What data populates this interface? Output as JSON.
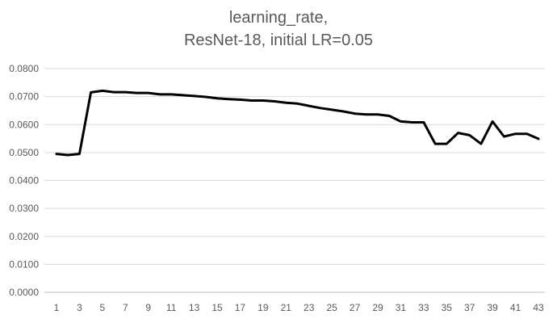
{
  "chart_data": {
    "type": "line",
    "title_line1": "learning_rate,",
    "title_line2": "ResNet-18, initial LR=0.05",
    "xlabel": "",
    "ylabel": "",
    "ylim": [
      0,
      0.08
    ],
    "y_ticks": [
      "0.0000",
      "0.0100",
      "0.0200",
      "0.0300",
      "0.0400",
      "0.0500",
      "0.0600",
      "0.0700",
      "0.0800"
    ],
    "y_tick_values": [
      0,
      0.01,
      0.02,
      0.03,
      0.04,
      0.05,
      0.06,
      0.07,
      0.08
    ],
    "x_tick_labels": [
      "1",
      "3",
      "5",
      "7",
      "9",
      "11",
      "13",
      "15",
      "17",
      "19",
      "21",
      "23",
      "25",
      "27",
      "29",
      "31",
      "33",
      "35",
      "37",
      "39",
      "41",
      "43"
    ],
    "grid": true,
    "legend": "none",
    "line_color": "#000000",
    "series": [
      {
        "x": [
          1,
          2,
          3,
          4,
          5,
          6,
          7,
          8,
          9,
          10,
          11,
          12,
          13,
          14,
          15,
          16,
          17,
          18,
          19,
          20,
          21,
          22,
          23,
          24,
          25,
          26,
          27,
          28,
          29,
          30,
          31,
          32,
          33,
          34,
          35,
          36,
          37,
          38,
          39,
          40,
          41,
          42,
          43
        ],
        "values": [
          0.0495,
          0.0491,
          0.0495,
          0.0715,
          0.0721,
          0.0716,
          0.0716,
          0.0713,
          0.0713,
          0.0708,
          0.0708,
          0.0705,
          0.0702,
          0.0699,
          0.0694,
          0.0691,
          0.0689,
          0.0686,
          0.0686,
          0.0683,
          0.0678,
          0.0675,
          0.0667,
          0.0659,
          0.0653,
          0.0647,
          0.0639,
          0.0636,
          0.0636,
          0.0631,
          0.0611,
          0.0608,
          0.0608,
          0.0531,
          0.0531,
          0.057,
          0.0562,
          0.0531,
          0.0611,
          0.0557,
          0.0567,
          0.0567,
          0.0549
        ]
      }
    ]
  }
}
